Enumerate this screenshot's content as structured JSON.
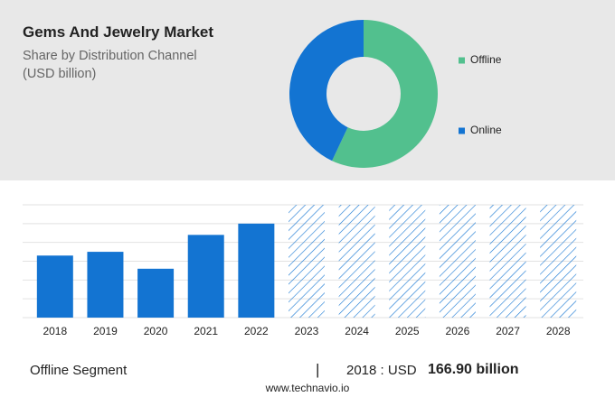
{
  "chart_data": [
    {
      "type": "pie",
      "title": "Gems And Jewelry Market",
      "subtitle": "Share by Distribution Channel (USD billion)",
      "donut": true,
      "categories": [
        "Offline",
        "Online"
      ],
      "values": [
        57,
        43
      ],
      "colors": [
        "#52c08e",
        "#1374d2"
      ],
      "legend": "right"
    },
    {
      "type": "bar",
      "categories": [
        "2018",
        "2019",
        "2020",
        "2021",
        "2022",
        "2023",
        "2024",
        "2025",
        "2026",
        "2027",
        "2028"
      ],
      "values": [
        3.3,
        3.5,
        2.6,
        4.4,
        5.0,
        null,
        null,
        null,
        null,
        null,
        null
      ],
      "color": "#1374d2",
      "ylim": [
        0,
        6
      ],
      "yticks": [
        0,
        1,
        2,
        3,
        4,
        5,
        6
      ],
      "grid": true
    }
  ],
  "footer": {
    "segment": "Offline Segment",
    "separator": "|",
    "year_label": "2018 : USD",
    "amount": "166.90 billion",
    "source": "www.technavio.io"
  }
}
